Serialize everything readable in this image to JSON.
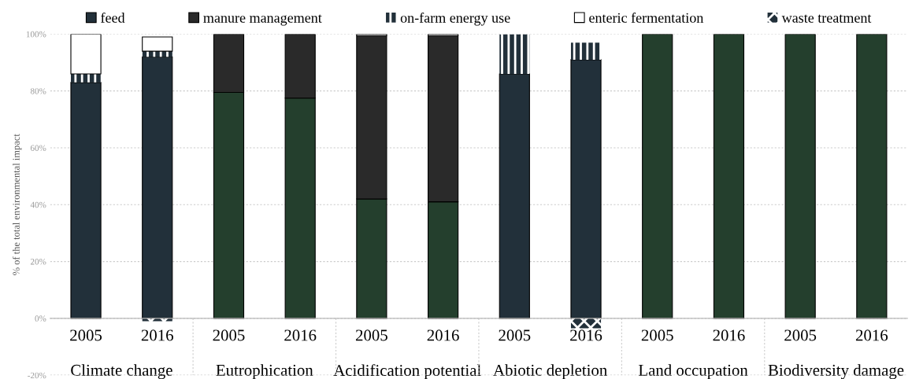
{
  "chart_data": {
    "type": "bar",
    "stacked": true,
    "ylabel": "% of the total environmental impact",
    "categories": [
      "2005",
      "2016",
      "2005",
      "2016",
      "2005",
      "2016",
      "2005",
      "2016",
      "2005",
      "2016",
      "2005",
      "2016"
    ],
    "annotations": [
      "Climate change",
      "Eutrophication",
      "Acidification potential",
      "Abiotic depletion",
      "Land occupation",
      "Biodiversity damage"
    ],
    "series": [
      {
        "name": "feed",
        "color": "#22303a",
        "colors": [
          "#22303a",
          "#22303a",
          "#243f2d",
          "#243f2d",
          "#243f2d",
          "#243f2d",
          "#22303a",
          "#22303a",
          "#243f2d",
          "#243f2d",
          "#243f2d",
          "#243f2d"
        ],
        "values": [
          83,
          92,
          79.5,
          77.5,
          42,
          41,
          86,
          91,
          100,
          100,
          100,
          100
        ]
      },
      {
        "name": "manure management",
        "color": "#2a2a2a",
        "values": [
          null,
          null,
          20.5,
          22.5,
          57.5,
          58.5,
          null,
          null,
          null,
          null,
          null,
          null
        ]
      },
      {
        "name": "on-farm energy use",
        "color": "#22303a",
        "values": [
          3,
          2,
          null,
          null,
          null,
          null,
          14,
          6,
          null,
          null,
          null,
          null
        ]
      },
      {
        "name": "enteric fermentation",
        "color": "#ffffff",
        "values": [
          14,
          5,
          null,
          null,
          0.5,
          0.5,
          null,
          null,
          null,
          null,
          null,
          null
        ]
      },
      {
        "name": "waste treatment",
        "color": "#22303a",
        "values": [
          null,
          -1,
          null,
          null,
          null,
          null,
          null,
          -3.5,
          null,
          null,
          null,
          null
        ]
      }
    ],
    "ylim": [
      -20,
      100
    ],
    "yticks": [
      {
        "value": -20,
        "label": "-20%"
      },
      {
        "value": 0,
        "label": "0%"
      },
      {
        "value": 20,
        "label": "20%"
      },
      {
        "value": 40,
        "label": "40%"
      },
      {
        "value": 60,
        "label": "60%"
      },
      {
        "value": 80,
        "label": "80%"
      },
      {
        "value": 100,
        "label": "100%"
      }
    ],
    "grid": "y",
    "legend": "top"
  }
}
